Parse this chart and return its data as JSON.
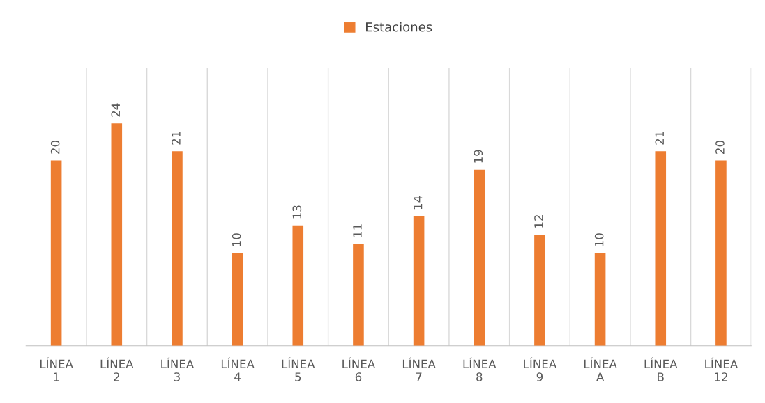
{
  "chart_data": {
    "type": "bar",
    "categories": [
      "LÍNEA\n1",
      "LÍNEA\n2",
      "LÍNEA\n3",
      "LÍNEA\n4",
      "LÍNEA\n5",
      "LÍNEA\n6",
      "LÍNEA\n7",
      "LÍNEA\n8",
      "LÍNEA\n9",
      "LÍNEA\nA",
      "LÍNEA\nB",
      "LÍNEA\n12"
    ],
    "series": [
      {
        "name": "Estaciones",
        "color": "#ed7d31",
        "values": [
          20,
          24,
          21,
          10,
          13,
          11,
          14,
          19,
          12,
          10,
          21,
          20
        ]
      }
    ],
    "data_labels": true,
    "grid": "x",
    "legend": "top"
  }
}
